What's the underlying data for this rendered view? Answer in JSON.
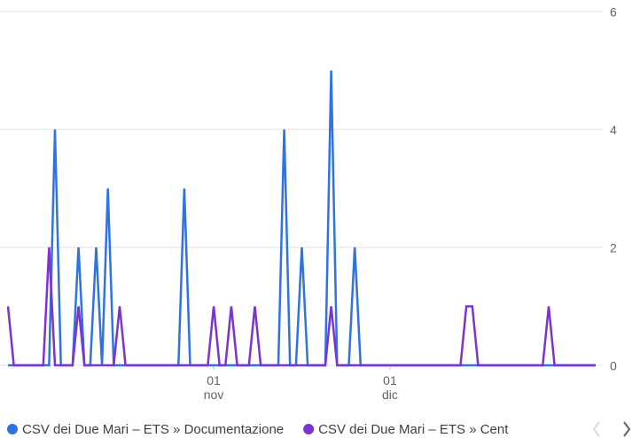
{
  "chart_data": {
    "type": "line",
    "categories": [
      null,
      null,
      null,
      null,
      null,
      null,
      null,
      null,
      null,
      null,
      null,
      null,
      null,
      null,
      null,
      null,
      null,
      null,
      null,
      null,
      null,
      null,
      null,
      null,
      null,
      null,
      null,
      null,
      null,
      null,
      null,
      null,
      null,
      null,
      null,
      "01 nov",
      null,
      null,
      null,
      null,
      null,
      null,
      null,
      null,
      null,
      null,
      null,
      null,
      null,
      null,
      null,
      null,
      null,
      null,
      null,
      null,
      null,
      null,
      null,
      null,
      null,
      null,
      null,
      null,
      null,
      "01 dic",
      null,
      null,
      null,
      null,
      null,
      null,
      null,
      null,
      null,
      null,
      null,
      null,
      null,
      null,
      null,
      null,
      null,
      null,
      null,
      null,
      null,
      null,
      null,
      null,
      null,
      null,
      null,
      null,
      null,
      null,
      null,
      null,
      null,
      null,
      null
    ],
    "series": [
      {
        "name": "CSV dei Due Mari – ETS » Documentazione",
        "color": "#2f72e4",
        "values": [
          0,
          0,
          0,
          0,
          0,
          0,
          0,
          0,
          4,
          0,
          0,
          0,
          2,
          0,
          0,
          2,
          0,
          3,
          0,
          0,
          0,
          0,
          0,
          0,
          0,
          0,
          0,
          0,
          0,
          0,
          3,
          0,
          0,
          0,
          0,
          0,
          0,
          0,
          0,
          0,
          0,
          0,
          0,
          0,
          0,
          0,
          0,
          4,
          0,
          0,
          2,
          0,
          0,
          0,
          0,
          5,
          0,
          0,
          0,
          2,
          0,
          0,
          0,
          0,
          0,
          0,
          0,
          0,
          0,
          0,
          0,
          0,
          0,
          0,
          0,
          0,
          0,
          0,
          0,
          0,
          0,
          0,
          0,
          0,
          0,
          0,
          0,
          0,
          0,
          0,
          0,
          0,
          0,
          0,
          0,
          0,
          0,
          0,
          0,
          0,
          0
        ]
      },
      {
        "name": "CSV dei Due Mari – ETS » Cent",
        "color": "#7b33d1",
        "values": [
          1,
          0,
          0,
          0,
          0,
          0,
          0,
          2,
          0,
          0,
          0,
          0,
          1,
          0,
          0,
          0,
          0,
          0,
          0,
          1,
          0,
          0,
          0,
          0,
          0,
          0,
          0,
          0,
          0,
          0,
          0,
          0,
          0,
          0,
          0,
          1,
          0,
          0,
          1,
          0,
          0,
          0,
          1,
          0,
          0,
          0,
          0,
          0,
          0,
          0,
          0,
          0,
          0,
          0,
          0,
          1,
          0,
          0,
          0,
          0,
          0,
          0,
          0,
          0,
          0,
          0,
          0,
          0,
          0,
          0,
          0,
          0,
          0,
          0,
          0,
          0,
          0,
          0,
          1,
          1,
          0,
          0,
          0,
          0,
          0,
          0,
          0,
          0,
          0,
          0,
          0,
          0,
          1,
          0,
          0,
          0,
          0,
          0,
          0,
          0,
          0
        ]
      }
    ],
    "ylim": [
      0,
      6
    ],
    "yticks": [
      0,
      2,
      4,
      6
    ],
    "grid": true,
    "legend": "bottom"
  }
}
